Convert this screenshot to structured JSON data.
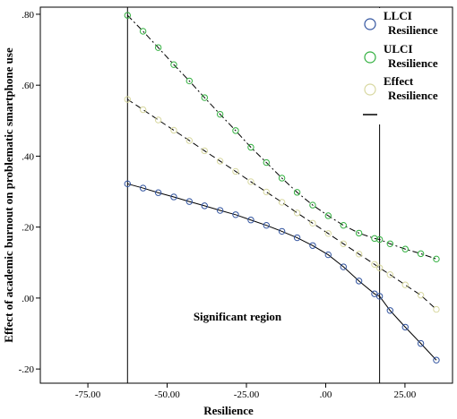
{
  "chart_data": {
    "type": "line",
    "xlabel": "Resilience",
    "ylabel": "Effect of academic burnout on problematic smartphone use",
    "xlim": [
      -90,
      40
    ],
    "ylim": [
      -0.24,
      0.82
    ],
    "x_ticks": [
      -75,
      -50,
      -25,
      0,
      25
    ],
    "x_tick_labels": [
      "-75.00",
      "-50.00",
      "-25.00",
      ".00",
      "25.00"
    ],
    "y_ticks": [
      -0.2,
      0.0,
      0.2,
      0.4,
      0.6,
      0.8
    ],
    "y_tick_labels": [
      "-.20",
      ".00",
      ".20",
      ".40",
      ".60",
      ".80"
    ],
    "grid": false,
    "legend_position": "top-right",
    "legend": [
      {
        "label_line1": "LLCI",
        "label_line2": "Resilience",
        "marker": "circle",
        "color": "#3355a0"
      },
      {
        "label_line1": "ULCI",
        "label_line2": "Resilience",
        "marker": "circle",
        "color": "#33b040"
      },
      {
        "label_line1": "Effect",
        "label_line2": "Resilience",
        "marker": "circle",
        "color": "#d8d8a0"
      },
      {
        "label_line1": "",
        "label_line2": "",
        "marker": "line",
        "color": "#000000"
      }
    ],
    "vertical_lines": [
      -62.5,
      17.0
    ],
    "annotation": "Significant region",
    "series": [
      {
        "key": "LLCI",
        "color": "#3355a0",
        "line_style": "solid",
        "x": [
          -62.5,
          -57.6,
          -52.8,
          -47.9,
          -43.0,
          -38.2,
          -33.3,
          -28.4,
          -23.6,
          -18.7,
          -13.8,
          -9.0,
          -4.1,
          0.8,
          5.6,
          10.5,
          15.4,
          17.0,
          20.3,
          25.1,
          30.0,
          34.9
        ],
        "y": [
          0.322,
          0.31,
          0.297,
          0.285,
          0.272,
          0.26,
          0.247,
          0.235,
          0.22,
          0.205,
          0.188,
          0.17,
          0.148,
          0.122,
          0.088,
          0.048,
          0.012,
          0.005,
          -0.035,
          -0.082,
          -0.128,
          -0.175
        ]
      },
      {
        "key": "ULCI",
        "color": "#33b040",
        "line_style": "dash-dot",
        "x": [
          -62.5,
          -57.6,
          -52.8,
          -47.9,
          -43.0,
          -38.2,
          -33.3,
          -28.4,
          -23.6,
          -18.7,
          -13.8,
          -9.0,
          -4.1,
          0.8,
          5.6,
          10.5,
          15.4,
          17.0,
          20.3,
          25.1,
          30.0,
          34.9
        ],
        "y": [
          0.797,
          0.752,
          0.706,
          0.658,
          0.612,
          0.565,
          0.518,
          0.472,
          0.425,
          0.382,
          0.338,
          0.298,
          0.262,
          0.232,
          0.205,
          0.183,
          0.168,
          0.165,
          0.153,
          0.138,
          0.125,
          0.11
        ]
      },
      {
        "key": "Effect",
        "color": "#d8d8a0",
        "line_style": "dashed",
        "x": [
          -62.5,
          -57.6,
          -52.8,
          -47.9,
          -43.0,
          -38.2,
          -33.3,
          -28.4,
          -23.6,
          -18.7,
          -13.8,
          -9.0,
          -4.1,
          0.8,
          5.6,
          10.5,
          15.4,
          17.0,
          20.3,
          25.1,
          30.0,
          34.9
        ],
        "y": [
          0.56,
          0.531,
          0.502,
          0.473,
          0.444,
          0.415,
          0.386,
          0.357,
          0.328,
          0.299,
          0.27,
          0.24,
          0.211,
          0.182,
          0.153,
          0.124,
          0.095,
          0.085,
          0.066,
          0.037,
          0.008,
          -0.032
        ]
      }
    ]
  }
}
